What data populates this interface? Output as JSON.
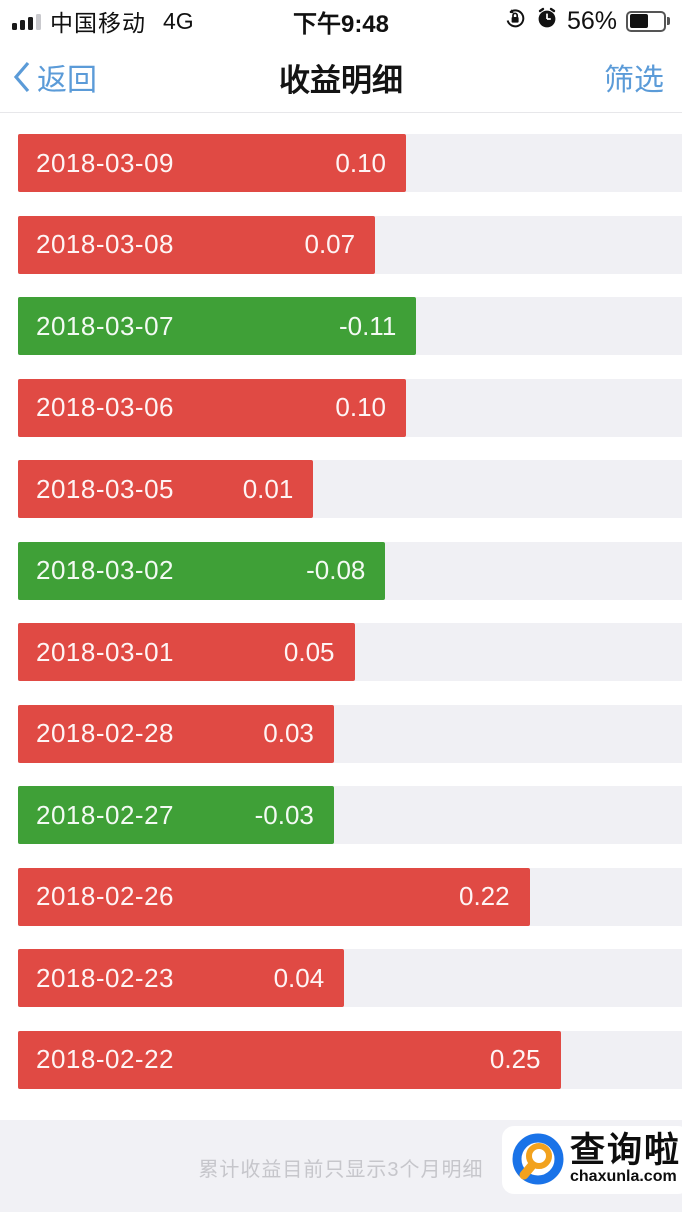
{
  "status_bar": {
    "carrier": "中国移动",
    "network": "4G",
    "time": "下午9:48",
    "battery_percent": "56%"
  },
  "nav": {
    "back_label": "返回",
    "title": "收益明细",
    "filter_label": "筛选"
  },
  "chart_data": {
    "type": "bar",
    "orientation": "horizontal",
    "title": "收益明细",
    "categories": [
      "2018-03-09",
      "2018-03-08",
      "2018-03-07",
      "2018-03-06",
      "2018-03-05",
      "2018-03-02",
      "2018-03-01",
      "2018-02-28",
      "2018-02-27",
      "2018-02-26",
      "2018-02-23",
      "2018-02-22"
    ],
    "values": [
      0.1,
      0.07,
      -0.11,
      0.1,
      0.01,
      -0.08,
      0.05,
      0.03,
      -0.03,
      0.22,
      0.04,
      0.25
    ],
    "value_labels": [
      "0.10",
      "0.07",
      "-0.11",
      "0.10",
      "0.01",
      "-0.08",
      "0.05",
      "0.03",
      "-0.03",
      "0.22",
      "0.04",
      "0.25"
    ],
    "positive_color": "#e04a44",
    "negative_color": "#3fa037",
    "track_color": "#f0f0f4",
    "value_range_note": "bar length grows with absolute value; red = positive gain, green = negative"
  },
  "footer": {
    "note": "累计收益目前只显示3个月明细",
    "watermark": {
      "brand": "查询啦",
      "domain": "chaxunla.com"
    }
  },
  "colors": {
    "accent_blue": "#5b9bd8",
    "positive_red": "#e04a44",
    "negative_green": "#3fa037",
    "watermark_blue": "#1a73e8",
    "watermark_orange": "#f2a21e"
  }
}
